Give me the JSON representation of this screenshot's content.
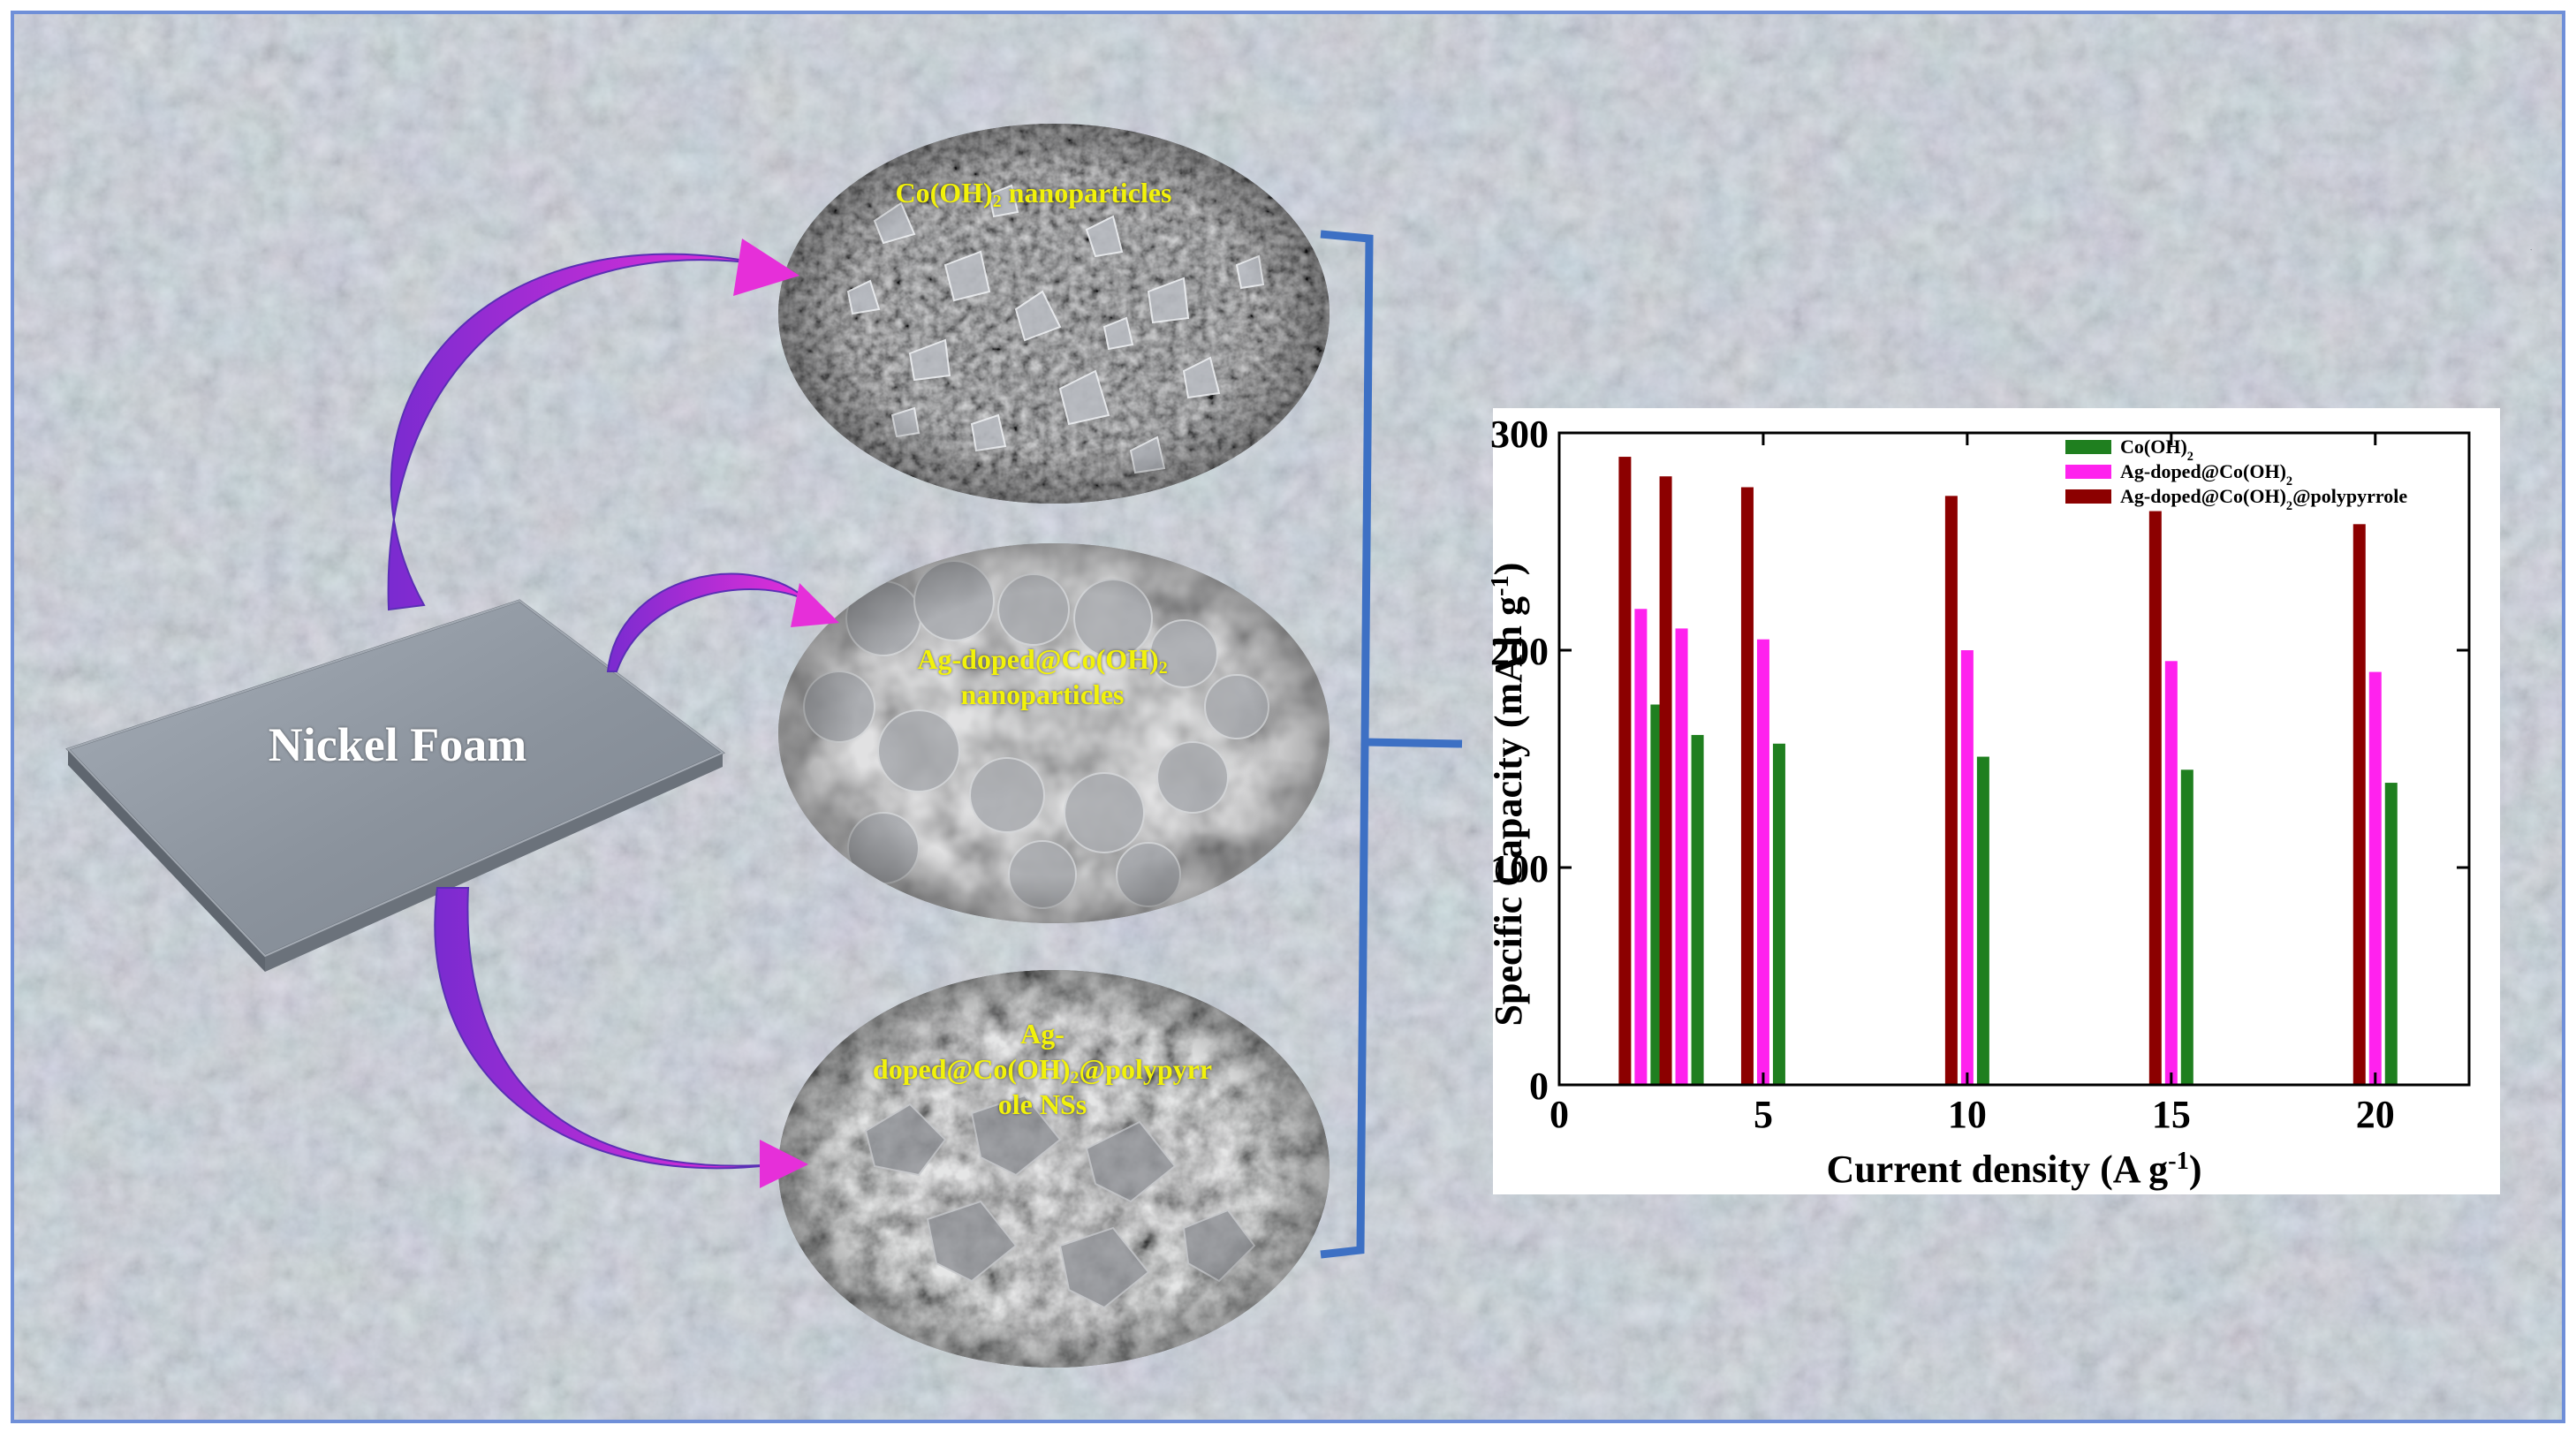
{
  "substrate": {
    "label": "Nickel Foam"
  },
  "sem_images": [
    {
      "label": "Co(OH)",
      "label_sub": "2",
      "label_tail": " nanoparticles"
    },
    {
      "label_line1": "Ag-doped@Co(OH)",
      "label_line1_sub": "2",
      "label_line2": "nanoparticles"
    },
    {
      "label_line1": "Ag-",
      "label_line2": "doped@Co(OH)",
      "label_line2_sub": "2",
      "label_line2_tail": "@polypyrr",
      "label_line3": "ole NSs"
    }
  ],
  "colors": {
    "background": "#c3d3ea",
    "frame": "#6f8fd8",
    "arrow": "#e52fd8",
    "bracket": "#3d70c4",
    "foam": "#8b949e"
  },
  "chart_data": {
    "type": "bar",
    "xlabel": "Current density (A g",
    "xlabel_sup": "-1",
    "xlabel_tail": ")",
    "ylabel": "Specific Capacity (mA h g",
    "ylabel_sup": "-1",
    "ylabel_tail": ")",
    "xlim": [
      0,
      22.3
    ],
    "ylim": [
      0,
      300
    ],
    "xticks": [
      0,
      5,
      10,
      15,
      20
    ],
    "yticks": [
      0,
      100,
      200,
      300
    ],
    "grid": false,
    "legend_position": "top-right",
    "x": [
      2,
      3,
      5,
      10,
      15,
      20
    ],
    "series": [
      {
        "name": "Co(OH)",
        "name_sub": "2",
        "name_tail": "",
        "color": "#1f7f1f",
        "values": [
          175,
          161,
          157,
          151,
          145,
          139
        ]
      },
      {
        "name": "Ag-doped@Co(OH)",
        "name_sub": "2",
        "name_tail": "",
        "color": "#ff22ee",
        "values": [
          219,
          210,
          205,
          200,
          195,
          190
        ]
      },
      {
        "name": "Ag-doped@Co(OH)",
        "name_sub": "2",
        "name_tail": "@polypyrrole",
        "color": "#8c0000",
        "values": [
          289,
          280,
          275,
          271,
          264,
          258
        ]
      }
    ]
  }
}
